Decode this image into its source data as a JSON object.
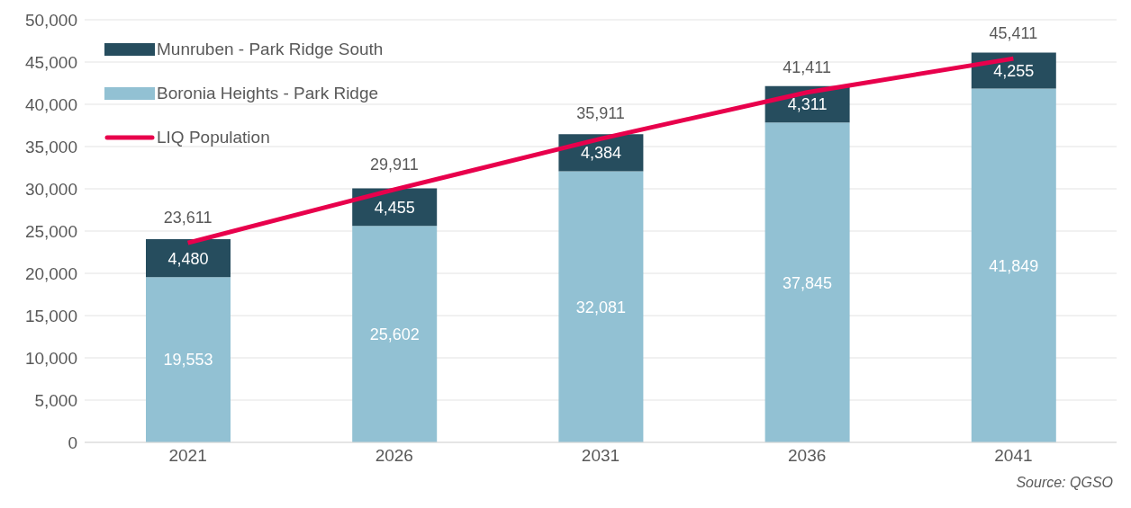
{
  "chart_data": {
    "type": "bar",
    "stacked": true,
    "categories": [
      "2021",
      "2026",
      "2031",
      "2036",
      "2041"
    ],
    "series": [
      {
        "name": "Boronia Heights - Park Ridge",
        "color": "#92c1d3",
        "values": [
          19553,
          25602,
          32081,
          37845,
          41849
        ],
        "value_labels": [
          "19,553",
          "25,602",
          "32,081",
          "37,845",
          "41,849"
        ]
      },
      {
        "name": "Munruben - Park Ridge South",
        "color": "#264d5e",
        "values": [
          4480,
          4455,
          4384,
          4311,
          4255
        ],
        "value_labels": [
          "4,480",
          "4,455",
          "4,384",
          "4,311",
          "4,255"
        ]
      },
      {
        "name": "LIQ Population",
        "type": "line",
        "color": "#e8004c",
        "values": [
          23611,
          29911,
          35911,
          41411,
          45411
        ],
        "value_labels": [
          "23,611",
          "29,911",
          "35,911",
          "41,411",
          "45,411"
        ]
      }
    ],
    "ylim": [
      0,
      50000
    ],
    "yticks": [
      0,
      {
        "value": 5000,
        "label": "5,000"
      },
      {
        "value": 10000,
        "label": "10,000"
      },
      {
        "value": 15000,
        "label": "15,000"
      },
      {
        "value": 20000,
        "label": "20,000"
      },
      {
        "value": 25000,
        "label": "25,000"
      },
      {
        "value": 30000,
        "label": "30,000"
      },
      {
        "value": 35000,
        "label": "35,000"
      },
      {
        "value": 40000,
        "label": "40,000"
      },
      {
        "value": 45000,
        "label": "45,000"
      },
      {
        "value": 50000,
        "label": "50,000"
      }
    ],
    "grid": "y",
    "legend": "top left",
    "annotations": [
      "Source: QGSO"
    ]
  }
}
